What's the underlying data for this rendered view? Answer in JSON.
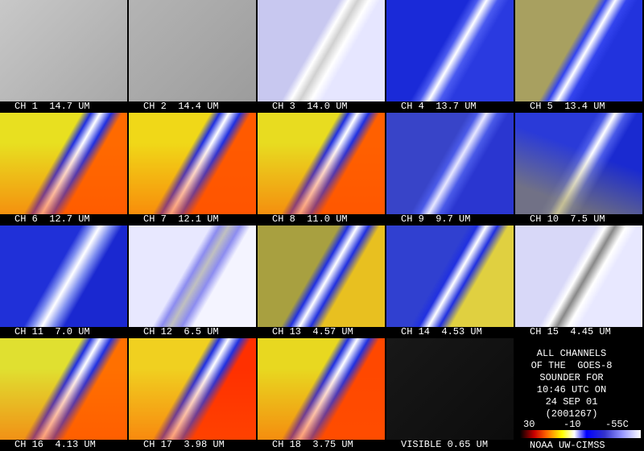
{
  "panels": [
    "CH 1  14.7 UM",
    "CH 2  14.4 UM",
    "CH 3  14.0 UM",
    "CH 4  13.7 UM",
    "CH 5  13.4 UM",
    "CH 6  12.7 UM",
    "CH 7  12.1 UM",
    "CH 8  11.0 UM",
    "CH 9  9.7 UM",
    "CH 10  7.5 UM",
    "CH 11  7.0 UM",
    "CH 12  6.5 UM",
    "CH 13  4.57 UM",
    "CH 14  4.53 UM",
    "CH 15  4.45 UM",
    "CH 16  4.13 UM",
    "CH 17  3.98 UM",
    "CH 18  3.75 UM",
    "VISIBLE 0.65 UM"
  ],
  "info": {
    "lines": [
      "ALL CHANNELS",
      "OF THE  GOES-8",
      "SOUNDER FOR",
      "10:46 UTC ON",
      "24 SEP 01",
      "(2001267)"
    ],
    "scale": [
      "30",
      "-10",
      "-55C"
    ],
    "credit": "NOAA UW-CIMSS"
  }
}
